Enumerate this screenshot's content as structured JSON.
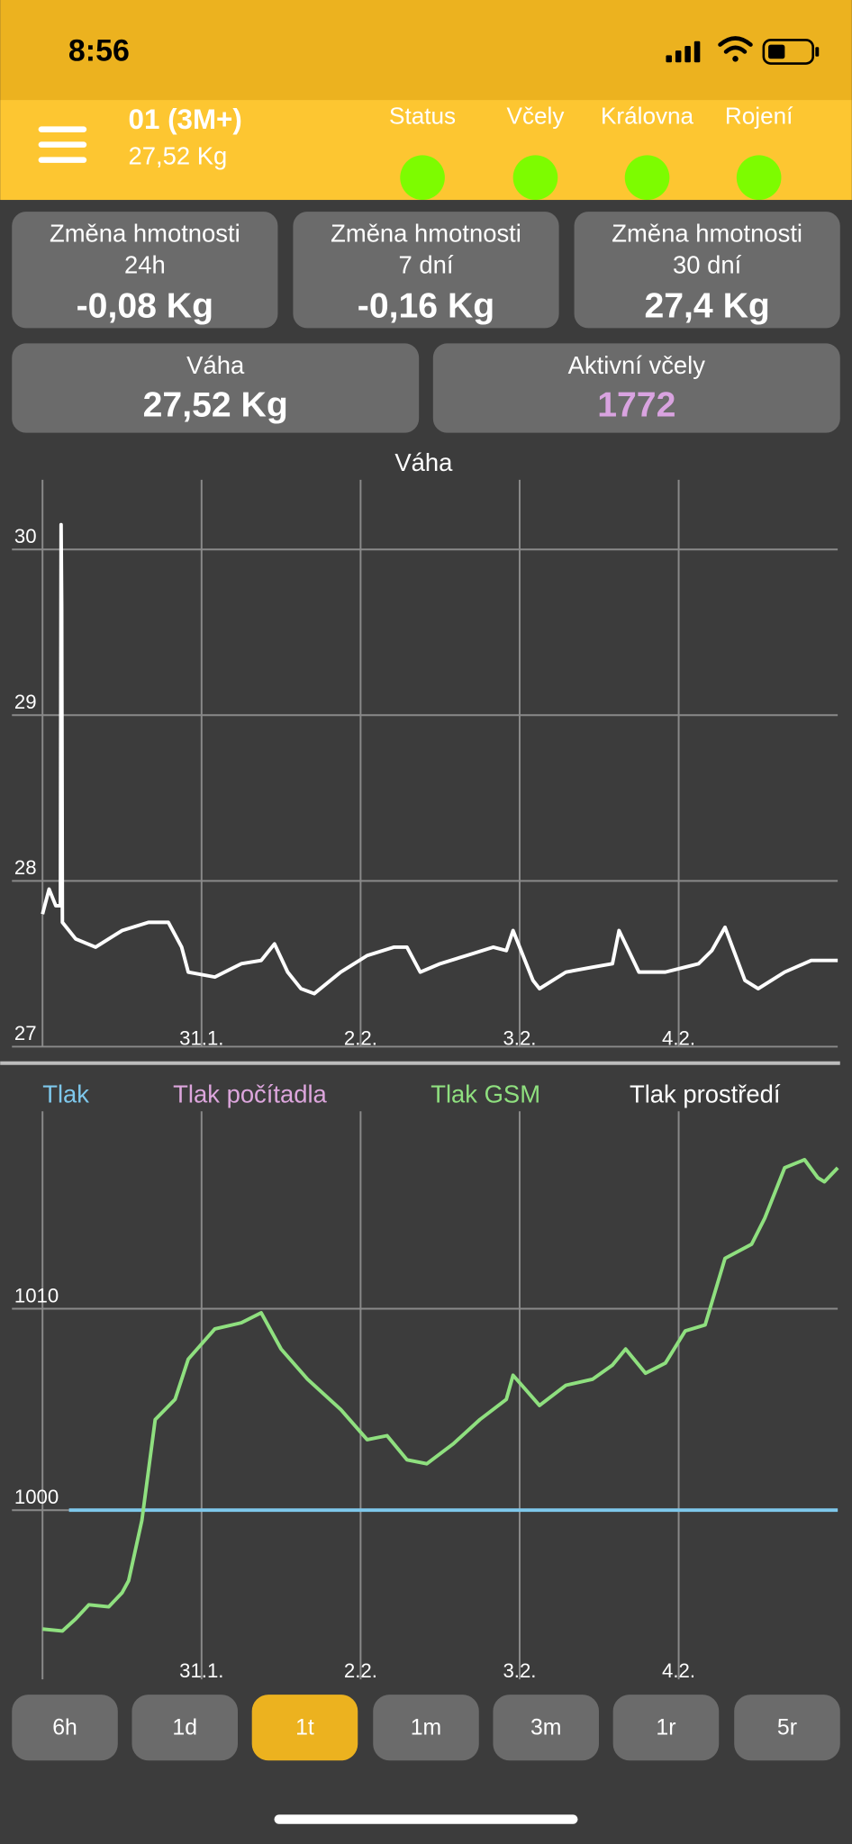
{
  "status_bar": {
    "time": "8:56"
  },
  "header": {
    "title": "01 (3M+)",
    "subtitle": "27,52 Kg",
    "indicators": [
      {
        "label": "Status",
        "color": "#7dfc00"
      },
      {
        "label": "Včely",
        "color": "#7dfc00"
      },
      {
        "label": "Královna",
        "color": "#7dfc00"
      },
      {
        "label": "Rojení",
        "color": "#7dfc00"
      }
    ]
  },
  "cards": [
    {
      "label": "Změna hmotnosti",
      "period": "24h",
      "value": "-0,08 Kg"
    },
    {
      "label": "Změna hmotnosti",
      "period": "7 dní",
      "value": "-0,16 Kg"
    },
    {
      "label": "Změna hmotnosti",
      "period": "30 dní",
      "value": "27,4 Kg"
    }
  ],
  "summary": [
    {
      "label": "Váha",
      "value": "27,52 Kg",
      "color": "#ffffff"
    },
    {
      "label": "Aktivní včely",
      "value": "1772",
      "color": "#d9a3e0"
    }
  ],
  "charts": [
    {
      "type": "line",
      "title": "Váha",
      "xlim": [
        0,
        120
      ],
      "xticks": [
        {
          "value": 24,
          "label": "31.1."
        },
        {
          "value": 48,
          "label": "2.2."
        },
        {
          "value": 72,
          "label": "3.2."
        },
        {
          "value": 96,
          "label": "4.2."
        }
      ],
      "ylim": [
        27,
        30.42
      ],
      "yticks": [
        27,
        28,
        29,
        30
      ],
      "grid": true,
      "series": [
        {
          "color": "#ffffff",
          "x": [
            0,
            1,
            2,
            2.7,
            2.8,
            2.9,
            3,
            5,
            8,
            12,
            16,
            19,
            21,
            22,
            26,
            30,
            33,
            35,
            37,
            39,
            41,
            45,
            49,
            53,
            55,
            57,
            60,
            64,
            68,
            70,
            71,
            74,
            75,
            79,
            83,
            86,
            87,
            90,
            94,
            99,
            101,
            103,
            106,
            108,
            112,
            116,
            120
          ],
          "values": [
            27.8,
            27.95,
            27.85,
            27.85,
            30.15,
            29.65,
            27.75,
            27.65,
            27.6,
            27.7,
            27.75,
            27.75,
            27.6,
            27.45,
            27.42,
            27.5,
            27.52,
            27.62,
            27.45,
            27.35,
            27.32,
            27.45,
            27.55,
            27.6,
            27.6,
            27.45,
            27.5,
            27.55,
            27.6,
            27.58,
            27.7,
            27.4,
            27.35,
            27.45,
            27.48,
            27.5,
            27.7,
            27.45,
            27.45,
            27.5,
            27.58,
            27.72,
            27.4,
            27.35,
            27.45,
            27.52,
            27.52
          ]
        }
      ]
    },
    {
      "type": "line",
      "xlim": [
        0,
        120
      ],
      "xticks": [
        {
          "value": 24,
          "label": "31.1."
        },
        {
          "value": 48,
          "label": "2.2."
        },
        {
          "value": 72,
          "label": "3.2."
        },
        {
          "value": 96,
          "label": "4.2."
        }
      ],
      "ylim": [
        991.6,
        1019.8
      ],
      "yticks": [
        1000,
        1010
      ],
      "grid": true,
      "series": [
        {
          "name": "Tlak",
          "color": "#7ec8ec",
          "x": [
            4,
            120
          ],
          "values": [
            1000,
            1000
          ]
        },
        {
          "name": "Tlak počítadla",
          "color": "#dda6dd",
          "x": [],
          "values": []
        },
        {
          "name": "Tlak GSM",
          "color": "#8fe07f",
          "x": [
            0,
            3,
            5,
            7,
            10,
            12,
            13,
            15,
            17,
            20,
            22,
            26,
            30,
            33,
            36,
            40,
            45,
            49,
            52,
            55,
            58,
            62,
            66,
            70,
            71,
            75,
            79,
            83,
            86,
            88,
            91,
            94,
            97,
            100,
            103,
            107,
            109,
            112,
            115,
            117,
            118,
            120
          ],
          "values": [
            994.1,
            994,
            994.6,
            995.3,
            995.2,
            995.9,
            996.5,
            999.5,
            1004.5,
            1005.5,
            1007.5,
            1009,
            1009.3,
            1009.8,
            1008,
            1006.5,
            1005,
            1003.5,
            1003.7,
            1002.5,
            1002.3,
            1003.3,
            1004.5,
            1005.5,
            1006.7,
            1005.2,
            1006.2,
            1006.5,
            1007.2,
            1008,
            1006.8,
            1007.3,
            1008.9,
            1009.2,
            1012.5,
            1013.2,
            1014.5,
            1017,
            1017.4,
            1016.5,
            1016.3,
            1017
          ]
        },
        {
          "name": "Tlak prostředí",
          "color": "#ffffff",
          "x": [],
          "values": []
        }
      ]
    }
  ],
  "range_buttons": {
    "options": [
      "6h",
      "1d",
      "1t",
      "1m",
      "3m",
      "1r",
      "5r"
    ],
    "selected": 2
  }
}
